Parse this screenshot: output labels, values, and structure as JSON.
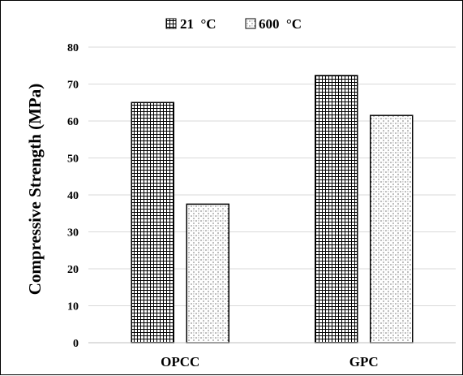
{
  "chart_data": {
    "type": "bar",
    "title": "",
    "xlabel": "",
    "ylabel": "Compressive Strength (MPa)",
    "categories": [
      "OPCC",
      "GPC"
    ],
    "series": [
      {
        "name": "21  °C",
        "values": [
          65,
          72.3
        ],
        "pattern": "grid"
      },
      {
        "name": "600  °C",
        "values": [
          37.5,
          61.5
        ],
        "pattern": "dots"
      }
    ],
    "ylim": [
      0,
      80
    ],
    "yticks": [
      0,
      10,
      20,
      30,
      40,
      50,
      60,
      70,
      80
    ],
    "grid": true,
    "legend": "top-center",
    "colors": {
      "bar_fill": "#ffffff",
      "bar_stroke": "#000000",
      "grid": "#d9d9d9",
      "axis": "#bfbfbf"
    }
  }
}
